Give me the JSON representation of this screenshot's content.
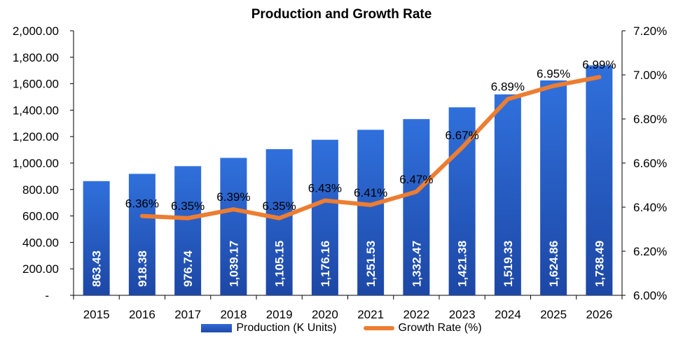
{
  "chart_data": {
    "type": "bar",
    "title": "Production and Growth Rate",
    "categories": [
      "2015",
      "2016",
      "2017",
      "2018",
      "2019",
      "2020",
      "2021",
      "2022",
      "2023",
      "2024",
      "2025",
      "2026"
    ],
    "series": [
      {
        "name": "Production (K Units)",
        "type": "bar",
        "axis": "left",
        "values": [
          863.43,
          918.38,
          976.74,
          1039.17,
          1105.15,
          1176.16,
          1251.53,
          1332.47,
          1421.38,
          1519.33,
          1624.86,
          1738.49
        ],
        "labels": [
          "863.43",
          "918.38",
          "976.74",
          "1,039.17",
          "1,105.15",
          "1,176.16",
          "1,251.53",
          "1,332.47",
          "1,421.38",
          "1,519.33",
          "1,624.86",
          "1,738.49"
        ],
        "color": "#2e66d2"
      },
      {
        "name": "Growth Rate (%)",
        "type": "line",
        "axis": "right",
        "values": [
          null,
          6.36,
          6.35,
          6.39,
          6.35,
          6.43,
          6.41,
          6.47,
          6.67,
          6.89,
          6.95,
          6.99
        ],
        "labels": [
          "",
          "6.36%",
          "6.35%",
          "6.39%",
          "6.35%",
          "6.43%",
          "6.41%",
          "6.47%",
          "6.67%",
          "6.89%",
          "6.95%",
          "6.99%"
        ],
        "color": "#ed7d31"
      }
    ],
    "left_axis": {
      "ylim": [
        0,
        2000
      ],
      "ticks": [
        0,
        200,
        400,
        600,
        800,
        1000,
        1200,
        1400,
        1600,
        1800,
        2000
      ],
      "tick_labels": [
        "-",
        "200.00",
        "400.00",
        "600.00",
        "800.00",
        "1,000.00",
        "1,200.00",
        "1,400.00",
        "1,600.00",
        "1,800.00",
        "2,000.00"
      ]
    },
    "right_axis": {
      "ylim": [
        6.0,
        7.2
      ],
      "ticks": [
        6.0,
        6.2,
        6.4,
        6.6,
        6.8,
        7.0,
        7.2
      ],
      "tick_labels": [
        "6.00%",
        "6.20%",
        "6.40%",
        "6.60%",
        "6.80%",
        "7.00%",
        "7.20%"
      ]
    },
    "grid": false,
    "legend_position": "bottom"
  }
}
